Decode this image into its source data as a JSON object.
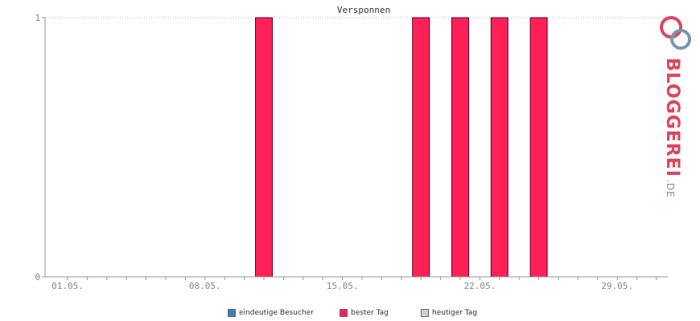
{
  "chart_data": {
    "type": "bar",
    "title": "Versponnen",
    "x_tick_labels": [
      "01.05.",
      "08.05.",
      "15.05.",
      "22.05.",
      "29.05."
    ],
    "y_tick_labels": [
      "0",
      "1"
    ],
    "ylim": [
      0,
      1
    ],
    "days": 31,
    "first_day_label": "01.05.",
    "series": [
      {
        "name": "bester Tag",
        "color": "#ff2058",
        "bars": [
          {
            "day": 11,
            "value": 1
          },
          {
            "day": 19,
            "value": 1
          },
          {
            "day": 21,
            "value": 1
          },
          {
            "day": 23,
            "value": 1
          },
          {
            "day": 25,
            "value": 1
          }
        ]
      }
    ],
    "grid": "top dotted line only"
  },
  "legend": {
    "items": [
      {
        "label": "eindeutige Besucher",
        "color": "#3a7fb0"
      },
      {
        "label": "bester Tag",
        "color": "#ff2058"
      },
      {
        "label": "heutiger Tag",
        "color": "#d0d0d0"
      }
    ]
  },
  "logo": {
    "main": "BLOGGEREI",
    "domain": ".DE"
  }
}
